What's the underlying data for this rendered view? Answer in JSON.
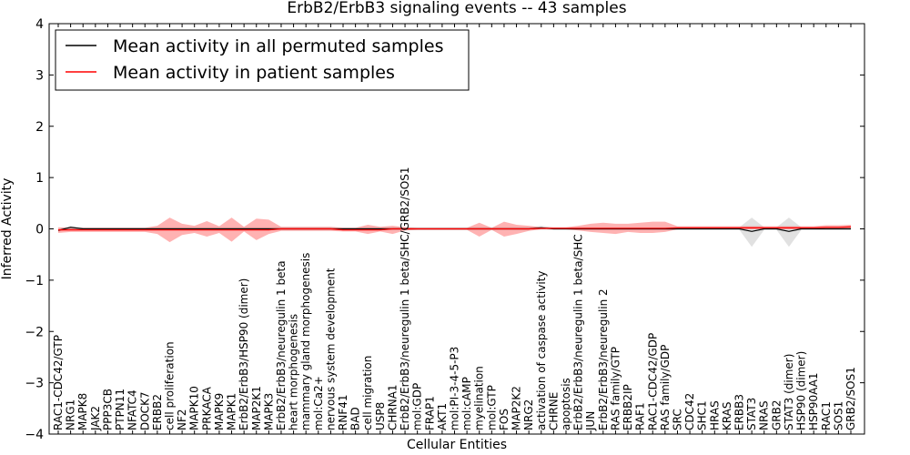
{
  "chart_data": {
    "type": "line",
    "title": "ErbB2/ErbB3 signaling events -- 43 samples",
    "xlabel": "Cellular Entities",
    "ylabel": "Inferred Activity",
    "ylim": [
      -4,
      4
    ],
    "yticks": [
      -4,
      -3,
      -2,
      -1,
      0,
      1,
      2,
      3,
      4
    ],
    "grid": false,
    "legend_position": "top-left",
    "categories": [
      "RAC1-CDC42/GTP",
      "NRG1",
      "MAPK8",
      "JAK2",
      "PPP3CB",
      "PTPN11",
      "NFATC4",
      "DOCK7",
      "ERBB2",
      "cell proliferation",
      "NF2",
      "MAPK10",
      "PRKACA",
      "MAPK9",
      "MAPK1",
      "ErbB2/ErbB3/HSP90 (dimer)",
      "MAP2K1",
      "MAPK3",
      "ErbB2/ErbB3/neuregulin 1 beta",
      "heart morphogenesis",
      "mammary gland morphogenesis",
      "mol:Ca2+",
      "nervous system development",
      "RNF41",
      "BAD",
      "cell migration",
      "USP8",
      "CHRNA1",
      "ErbB2/ErbB3/neuregulin 1 beta/SHC/GRB2/SOS1",
      "mol:GDP",
      "FRAP1",
      "AKT1",
      "mol:PI-3-4-5-P3",
      "mol:cAMP",
      "myelination",
      "mol:GTP",
      "FOS",
      "MAP2K2",
      "NRG2",
      "activation of caspase activity",
      "CHRNE",
      "apoptosis",
      "ErbB2/ErbB3/neuregulin 1 beta/SHC",
      "JUN",
      "ErbB2/ErbB3/neuregulin 2",
      "RAS family/GTP",
      "ERBB2IP",
      "RAF1",
      "RAC1-CDC42/GDP",
      "RAS family/GDP",
      "SRC",
      "CDC42",
      "SHC1",
      "HRAS",
      "KRAS",
      "ERBB3",
      "STAT3",
      "NRAS",
      "GRB2",
      "STAT3 (dimer)",
      "HSP90 (dimer)",
      "HSP90AA1",
      "RAC1",
      "SOS1",
      "GRB2/SOS1"
    ],
    "series": [
      {
        "name": "Mean activity in all permuted samples",
        "color": "#000000",
        "values": [
          -0.03,
          0.03,
          0,
          0,
          0,
          0,
          0,
          0,
          0,
          0,
          0,
          0,
          0,
          0,
          0,
          0,
          0,
          0,
          0,
          0,
          0,
          0,
          0,
          0,
          0,
          0,
          0,
          0,
          0,
          0,
          0,
          0,
          0,
          0,
          0,
          0,
          0,
          0,
          0,
          0.02,
          0,
          0,
          0,
          0,
          0,
          0,
          0,
          0,
          0,
          0,
          0,
          0,
          0,
          0,
          0,
          0,
          -0.05,
          0,
          0,
          -0.05,
          0,
          0,
          0,
          0,
          0
        ],
        "band_lower": [
          -0.05,
          -0.02,
          -0.02,
          -0.02,
          -0.02,
          -0.02,
          -0.02,
          -0.02,
          -0.02,
          -0.02,
          -0.02,
          -0.02,
          -0.02,
          -0.02,
          -0.02,
          -0.02,
          -0.02,
          -0.02,
          -0.02,
          -0.02,
          -0.02,
          -0.02,
          -0.02,
          -0.02,
          -0.02,
          -0.02,
          -0.02,
          -0.02,
          -0.02,
          -0.02,
          -0.02,
          -0.02,
          -0.02,
          -0.02,
          -0.02,
          -0.02,
          -0.02,
          -0.02,
          -0.02,
          -0.02,
          -0.02,
          -0.02,
          -0.02,
          -0.02,
          -0.02,
          -0.02,
          -0.02,
          -0.02,
          -0.02,
          -0.02,
          -0.02,
          -0.02,
          -0.02,
          -0.02,
          -0.02,
          -0.02,
          -0.35,
          -0.02,
          -0.02,
          -0.35,
          -0.02,
          -0.02,
          -0.02,
          -0.02,
          -0.02
        ],
        "band_upper": [
          0,
          0.06,
          0.03,
          0.03,
          0.03,
          0.03,
          0.03,
          0.03,
          0.03,
          0.03,
          0.03,
          0.03,
          0.03,
          0.03,
          0.03,
          0.03,
          0.03,
          0.03,
          0.03,
          0.03,
          0.03,
          0.03,
          0.03,
          0.03,
          0.03,
          0.03,
          0.03,
          0.03,
          0.03,
          0.03,
          0.03,
          0.03,
          0.03,
          0.03,
          0.03,
          0.03,
          0.03,
          0.03,
          0.03,
          0.06,
          0.03,
          0.03,
          0.03,
          0.03,
          0.03,
          0.03,
          0.03,
          0.03,
          0.03,
          0.03,
          0.03,
          0.03,
          0.03,
          0.03,
          0.03,
          0.03,
          0.22,
          0.03,
          0.03,
          0.22,
          0.03,
          0.03,
          0.03,
          0.03,
          0.03
        ]
      },
      {
        "name": "Mean activity in patient samples",
        "color": "#ff0000",
        "values": [
          -0.02,
          -0.02,
          -0.02,
          -0.02,
          -0.02,
          -0.02,
          -0.02,
          -0.02,
          -0.02,
          -0.02,
          -0.02,
          -0.02,
          -0.02,
          -0.02,
          -0.02,
          -0.02,
          -0.02,
          -0.02,
          0,
          0,
          0,
          0,
          0,
          -0.02,
          -0.02,
          -0.02,
          -0.02,
          0,
          0,
          0,
          0,
          0,
          0,
          0,
          0,
          0,
          0,
          0,
          0,
          0.01,
          0.01,
          0.01,
          0.01,
          0.01,
          0.01,
          0.01,
          0.01,
          0.01,
          0.01,
          0.01,
          0.02,
          0.02,
          0.02,
          0.02,
          0.02,
          0.02,
          0.02,
          0.02,
          0.02,
          0.02,
          0.02,
          0.02,
          0.03,
          0.03,
          0.04
        ],
        "band_lower": [
          -0.08,
          -0.06,
          -0.06,
          -0.06,
          -0.06,
          -0.06,
          -0.06,
          -0.06,
          -0.1,
          -0.26,
          -0.12,
          -0.08,
          -0.15,
          -0.08,
          -0.25,
          -0.05,
          -0.22,
          -0.1,
          -0.04,
          -0.04,
          -0.04,
          -0.04,
          -0.04,
          -0.05,
          -0.05,
          -0.1,
          -0.05,
          -0.1,
          -0.03,
          -0.02,
          -0.02,
          -0.02,
          -0.02,
          -0.02,
          -0.15,
          -0.02,
          -0.15,
          -0.1,
          -0.04,
          -0.01,
          -0.01,
          -0.01,
          -0.03,
          -0.06,
          -0.08,
          -0.1,
          -0.06,
          -0.08,
          -0.08,
          -0.06,
          -0.01,
          -0.01,
          -0.01,
          -0.01,
          -0.01,
          -0.01,
          -0.01,
          -0.01,
          -0.01,
          -0.01,
          -0.01,
          -0.01,
          0,
          0,
          0
        ],
        "band_upper": [
          0.03,
          0.02,
          0.02,
          0.02,
          0.02,
          0.02,
          0.02,
          0.02,
          0.06,
          0.22,
          0.1,
          0.06,
          0.15,
          0.05,
          0.22,
          0.04,
          0.2,
          0.18,
          0.04,
          0.04,
          0.04,
          0.04,
          0.04,
          0.02,
          0.02,
          0.08,
          0.04,
          0.06,
          0.03,
          0.02,
          0.02,
          0.02,
          0.02,
          0.02,
          0.12,
          0.02,
          0.14,
          0.08,
          0.06,
          0.03,
          0.03,
          0.03,
          0.06,
          0.1,
          0.12,
          0.1,
          0.1,
          0.12,
          0.14,
          0.14,
          0.05,
          0.05,
          0.05,
          0.05,
          0.05,
          0.05,
          0.05,
          0.05,
          0.05,
          0.05,
          0.05,
          0.05,
          0.07,
          0.07,
          0.08
        ]
      }
    ]
  }
}
